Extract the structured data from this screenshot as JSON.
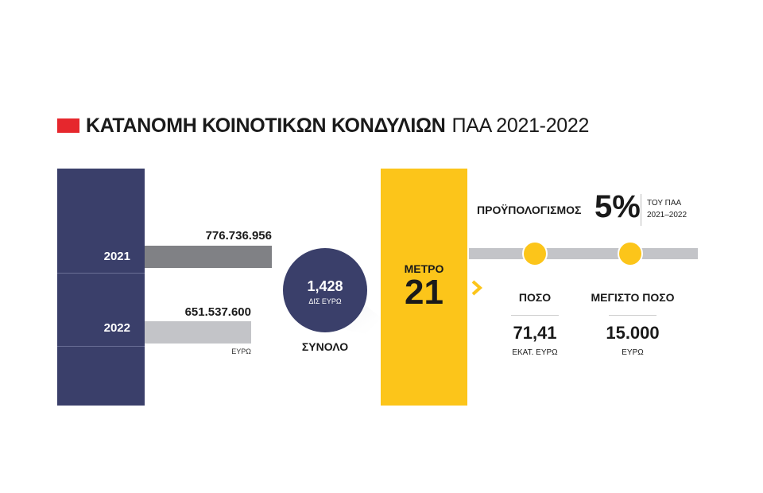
{
  "title": {
    "bold": "ΚΑΤΑΝΟΜΗ ΚΟΙΝΟΤΙΚΩΝ ΚΟΝΔΥΛΙΩΝ",
    "normal": "ΠΑΑ 2021-2022",
    "accent_color": "#e6272d"
  },
  "colors": {
    "navy": "#3a3f6a",
    "yellow": "#fcc51a",
    "bar_2021": "#808185",
    "bar_2022": "#c3c4c8"
  },
  "total": {
    "value": "1,428",
    "unit": "ΔΙΣ ΕΥΡΩ",
    "label": "ΣΥΝΟΛΟ"
  },
  "measure": {
    "label": "ΜΕΤΡΟ",
    "number": "21"
  },
  "budget": {
    "label": "ΠΡΟΫΠΟΛΟΓΙΣΜΟΣ",
    "percent": "5%",
    "note_line1": "ΤΟΥ ΠΑΑ",
    "note_line2": "2021–2022"
  },
  "stats": [
    {
      "label": "ΠΟΣΟ",
      "value": "71,41",
      "unit": "ΕΚΑΤ. ΕΥΡΩ"
    },
    {
      "label": "ΜΕΓΙΣΤΟ ΠΟΣΟ",
      "value": "15.000",
      "unit": "ΕΥΡΩ"
    }
  ],
  "chart_data": {
    "type": "bar",
    "orientation": "horizontal",
    "categories": [
      "2021",
      "2022"
    ],
    "values": [
      776736956,
      651537600
    ],
    "value_labels": [
      "776.736.956",
      "651.537.600"
    ],
    "unit": "ΕΥΡΩ"
  }
}
